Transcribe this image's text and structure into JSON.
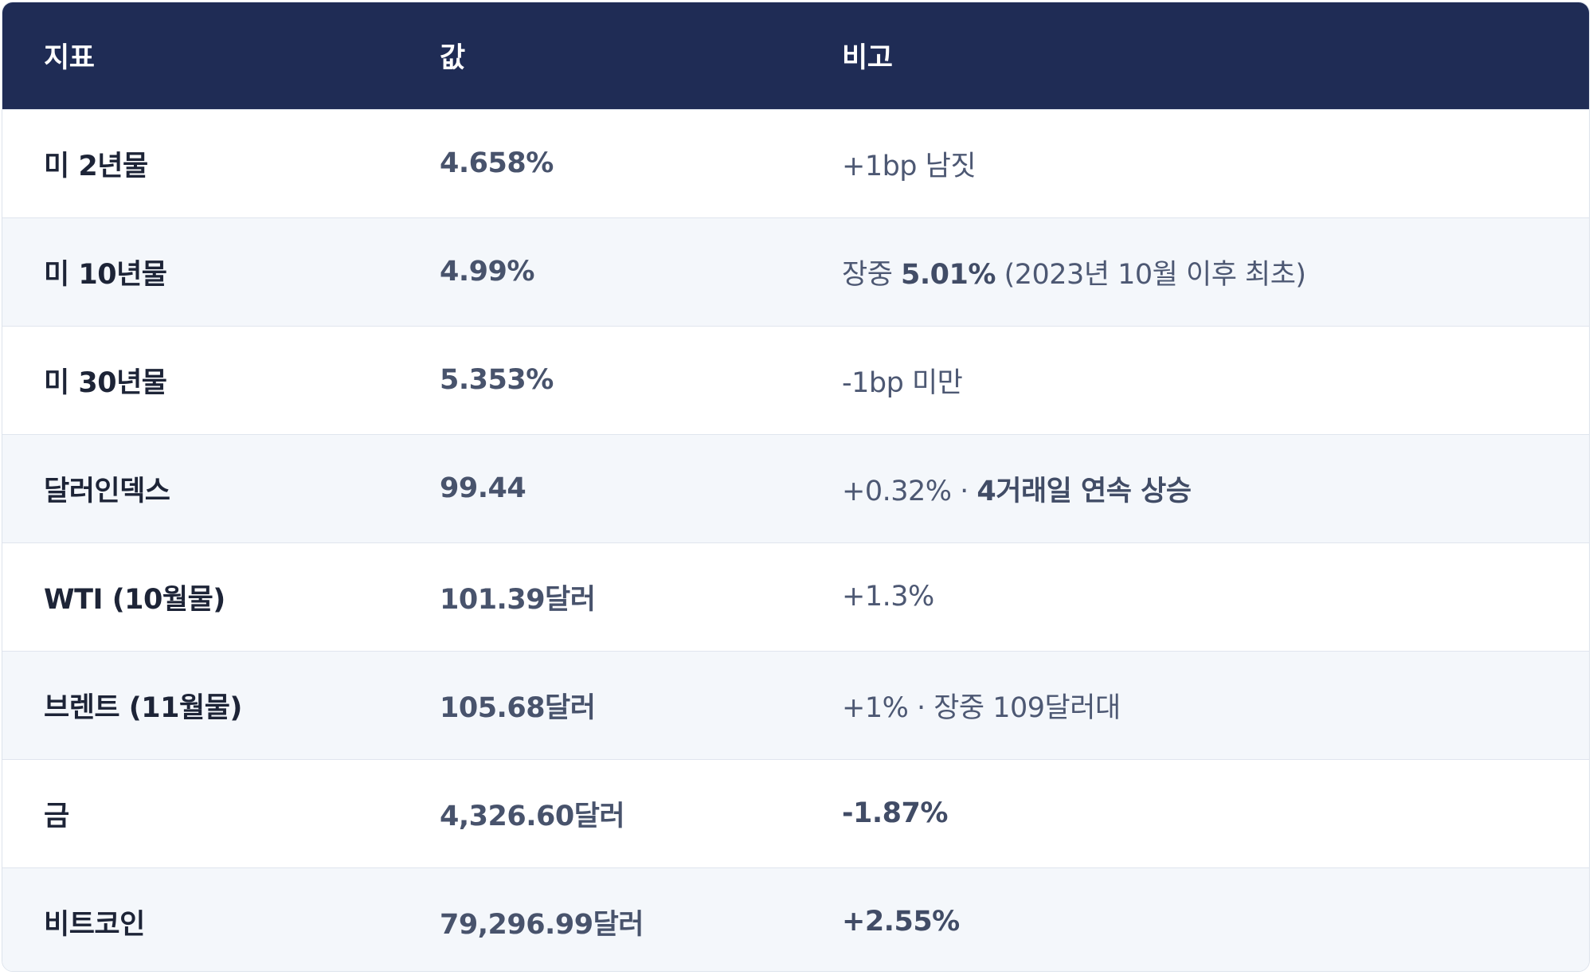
{
  "table": {
    "header": [
      "지표",
      "값",
      "비고"
    ],
    "rows": [
      {
        "indicator": "미 2년물",
        "value": "4.658%",
        "note": [
          {
            "text": "+1bp 남짓"
          }
        ]
      },
      {
        "indicator": "미 10년물",
        "value": "4.99%",
        "note": [
          {
            "text": "장중 "
          },
          {
            "text": "5.01%",
            "strong": true
          },
          {
            "text": " (2023년 10월 이후 최초)"
          }
        ]
      },
      {
        "indicator": "미 30년물",
        "value": "5.353%",
        "note": [
          {
            "text": "-1bp 미만"
          }
        ]
      },
      {
        "indicator": "달러인덱스",
        "value": "99.44",
        "note": [
          {
            "text": "+0.32% · "
          },
          {
            "text": "4거래일 연속 상승",
            "strong": true
          }
        ]
      },
      {
        "indicator": "WTI (10월물)",
        "value": "101.39달러",
        "note": [
          {
            "text": "+1.3%"
          }
        ]
      },
      {
        "indicator": "브렌트 (11월물)",
        "value": "105.68달러",
        "note": [
          {
            "text": "+1% · 장중 109달러대"
          }
        ]
      },
      {
        "indicator": "금",
        "value": "4,326.60달러",
        "note": [
          {
            "text": "-1.87%",
            "strong": true
          }
        ]
      },
      {
        "indicator": "비트코인",
        "value": "79,296.99달러",
        "note": [
          {
            "text": "+2.55%",
            "strong": true
          }
        ]
      }
    ]
  }
}
